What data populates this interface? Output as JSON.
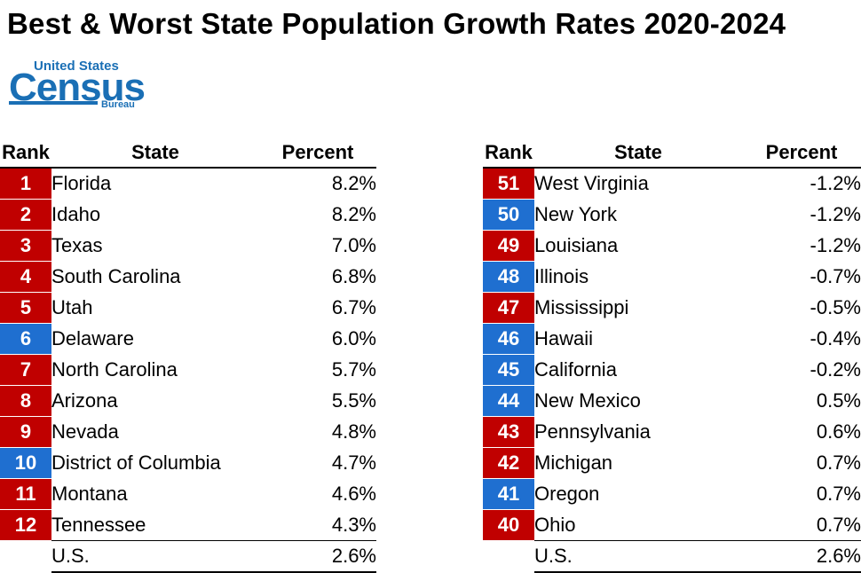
{
  "title": "Best & Worst State Population Growth Rates 2020-2024",
  "logo": {
    "line1": "United States",
    "line2": "Census",
    "line3": "Bureau"
  },
  "colors": {
    "red": "#c00000",
    "blue": "#1f6fd0"
  },
  "headers": {
    "rank": "Rank",
    "state": "State",
    "percent": "Percent"
  },
  "chart_data": [
    {
      "type": "table",
      "title": "",
      "columns": [
        "Rank",
        "State",
        "Percent"
      ],
      "rows": [
        {
          "rank": "1",
          "state": "Florida",
          "percent": "8.2%",
          "color": "red"
        },
        {
          "rank": "2",
          "state": "Idaho",
          "percent": "8.2%",
          "color": "red"
        },
        {
          "rank": "3",
          "state": "Texas",
          "percent": "7.0%",
          "color": "red"
        },
        {
          "rank": "4",
          "state": "South Carolina",
          "percent": "6.8%",
          "color": "red"
        },
        {
          "rank": "5",
          "state": "Utah",
          "percent": "6.7%",
          "color": "red"
        },
        {
          "rank": "6",
          "state": "Delaware",
          "percent": "6.0%",
          "color": "blue"
        },
        {
          "rank": "7",
          "state": "North Carolina",
          "percent": "5.7%",
          "color": "red"
        },
        {
          "rank": "8",
          "state": "Arizona",
          "percent": "5.5%",
          "color": "red"
        },
        {
          "rank": "9",
          "state": "Nevada",
          "percent": "4.8%",
          "color": "red"
        },
        {
          "rank": "10",
          "state": "District of Columbia",
          "percent": "4.7%",
          "color": "blue"
        },
        {
          "rank": "11",
          "state": "Montana",
          "percent": "4.6%",
          "color": "red"
        },
        {
          "rank": "12",
          "state": "Tennessee",
          "percent": "4.3%",
          "color": "red"
        }
      ],
      "total": {
        "state": "U.S.",
        "percent": "2.6%"
      }
    },
    {
      "type": "table",
      "title": "",
      "columns": [
        "Rank",
        "State",
        "Percent"
      ],
      "rows": [
        {
          "rank": "51",
          "state": "West Virginia",
          "percent": "-1.2%",
          "color": "red"
        },
        {
          "rank": "50",
          "state": "New York",
          "percent": "-1.2%",
          "color": "blue"
        },
        {
          "rank": "49",
          "state": "Louisiana",
          "percent": "-1.2%",
          "color": "red"
        },
        {
          "rank": "48",
          "state": "Illinois",
          "percent": "-0.7%",
          "color": "blue"
        },
        {
          "rank": "47",
          "state": "Mississippi",
          "percent": "-0.5%",
          "color": "red"
        },
        {
          "rank": "46",
          "state": "Hawaii",
          "percent": "-0.4%",
          "color": "blue"
        },
        {
          "rank": "45",
          "state": "California",
          "percent": "-0.2%",
          "color": "blue"
        },
        {
          "rank": "44",
          "state": "New Mexico",
          "percent": "0.5%",
          "color": "blue"
        },
        {
          "rank": "43",
          "state": "Pennsylvania",
          "percent": "0.6%",
          "color": "red"
        },
        {
          "rank": "42",
          "state": "Michigan",
          "percent": "0.7%",
          "color": "red"
        },
        {
          "rank": "41",
          "state": "Oregon",
          "percent": "0.7%",
          "color": "blue"
        },
        {
          "rank": "40",
          "state": "Ohio",
          "percent": "0.7%",
          "color": "red"
        }
      ],
      "total": {
        "state": "U.S.",
        "percent": "2.6%"
      }
    }
  ]
}
